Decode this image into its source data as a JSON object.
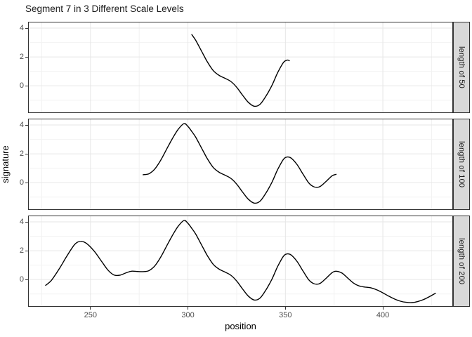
{
  "page": {
    "background": "#ffffff"
  },
  "chart_data": {
    "type": "line",
    "title": "Segment 7 in 3 Different Scale Levels",
    "xlabel": "position",
    "ylabel": "signature",
    "xlim": [
      218,
      436
    ],
    "ylim": [
      -1.89,
      4.44
    ],
    "x_major_ticks": [
      250,
      300,
      350,
      400
    ],
    "x_minor_ticks": [
      225,
      275,
      325,
      375,
      425
    ],
    "y_major_ticks": [
      4,
      2,
      0
    ],
    "y_minor_ticks": [
      3,
      1,
      -1
    ],
    "grid": "on",
    "legend": "none",
    "facets": [
      {
        "strip_label": "length of 50",
        "x_start": 302,
        "x_end": 352
      },
      {
        "strip_label": "length of 100",
        "x_start": 277,
        "x_end": 376
      },
      {
        "strip_label": "length of 200",
        "x_start": 227,
        "x_end": 427
      }
    ],
    "series": [
      {
        "name": "signature",
        "points": [
          [
            227,
            -0.4
          ],
          [
            230,
            -0.05
          ],
          [
            234,
            0.75
          ],
          [
            238,
            1.65
          ],
          [
            242,
            2.45
          ],
          [
            245,
            2.65
          ],
          [
            248,
            2.5
          ],
          [
            252,
            1.95
          ],
          [
            256,
            1.2
          ],
          [
            259,
            0.65
          ],
          [
            262,
            0.32
          ],
          [
            265,
            0.3
          ],
          [
            268,
            0.45
          ],
          [
            271,
            0.58
          ],
          [
            274,
            0.56
          ],
          [
            277,
            0.55
          ],
          [
            280,
            0.62
          ],
          [
            283,
            0.95
          ],
          [
            286,
            1.55
          ],
          [
            289,
            2.3
          ],
          [
            292,
            3.05
          ],
          [
            295,
            3.7
          ],
          [
            298,
            4.1
          ],
          [
            300,
            3.9
          ],
          [
            302,
            3.55
          ],
          [
            304,
            3.15
          ],
          [
            307,
            2.4
          ],
          [
            310,
            1.65
          ],
          [
            313,
            1.05
          ],
          [
            316,
            0.72
          ],
          [
            319,
            0.52
          ],
          [
            322,
            0.3
          ],
          [
            325,
            -0.1
          ],
          [
            328,
            -0.65
          ],
          [
            331,
            -1.15
          ],
          [
            334,
            -1.42
          ],
          [
            337,
            -1.28
          ],
          [
            340,
            -0.72
          ],
          [
            343,
            0.0
          ],
          [
            346,
            0.9
          ],
          [
            349,
            1.62
          ],
          [
            351,
            1.78
          ],
          [
            353,
            1.7
          ],
          [
            356,
            1.25
          ],
          [
            359,
            0.6
          ],
          [
            362,
            -0.02
          ],
          [
            364,
            -0.25
          ],
          [
            366,
            -0.32
          ],
          [
            368,
            -0.25
          ],
          [
            371,
            0.1
          ],
          [
            374,
            0.48
          ],
          [
            376,
            0.58
          ],
          [
            379,
            0.45
          ],
          [
            382,
            0.1
          ],
          [
            385,
            -0.25
          ],
          [
            388,
            -0.45
          ],
          [
            391,
            -0.52
          ],
          [
            394,
            -0.58
          ],
          [
            397,
            -0.72
          ],
          [
            400,
            -0.92
          ],
          [
            403,
            -1.15
          ],
          [
            406,
            -1.35
          ],
          [
            409,
            -1.5
          ],
          [
            412,
            -1.58
          ],
          [
            415,
            -1.6
          ],
          [
            418,
            -1.52
          ],
          [
            421,
            -1.38
          ],
          [
            424,
            -1.18
          ],
          [
            427,
            -0.95
          ]
        ]
      }
    ]
  },
  "theme": {
    "line_color": "#000000",
    "panel_bg": "#ffffff",
    "panel_border": "#333333",
    "grid_major": "#e6e6e6",
    "grid_minor": "#f2f2f2",
    "strip_bg": "#d9d9d9",
    "strip_text": "#1a1a1a",
    "tick_color": "#333333",
    "tick_label_color": "#4d4d4d",
    "title_color": "#1a1a1a"
  }
}
